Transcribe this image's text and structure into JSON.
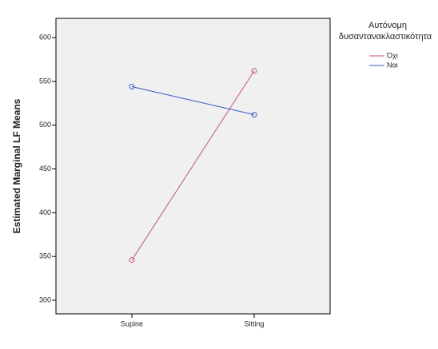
{
  "chart_data": {
    "type": "line",
    "y_label": "Estimated Marginal LF Means",
    "legend_title": [
      "Αυτόνομη",
      "δυσαντανακλαστικότητα"
    ],
    "categories": [
      "Supine",
      "Sitting"
    ],
    "series": [
      {
        "name": "Όχι",
        "color": "#c8547a",
        "values": [
          346,
          562
        ]
      },
      {
        "name": "Ναι",
        "color": "#3a56c8",
        "values": [
          544,
          512
        ]
      }
    ],
    "ylim": [
      284.5,
      622
    ],
    "yticks": [
      300,
      350,
      400,
      450,
      500,
      550,
      600
    ],
    "grid": false
  }
}
